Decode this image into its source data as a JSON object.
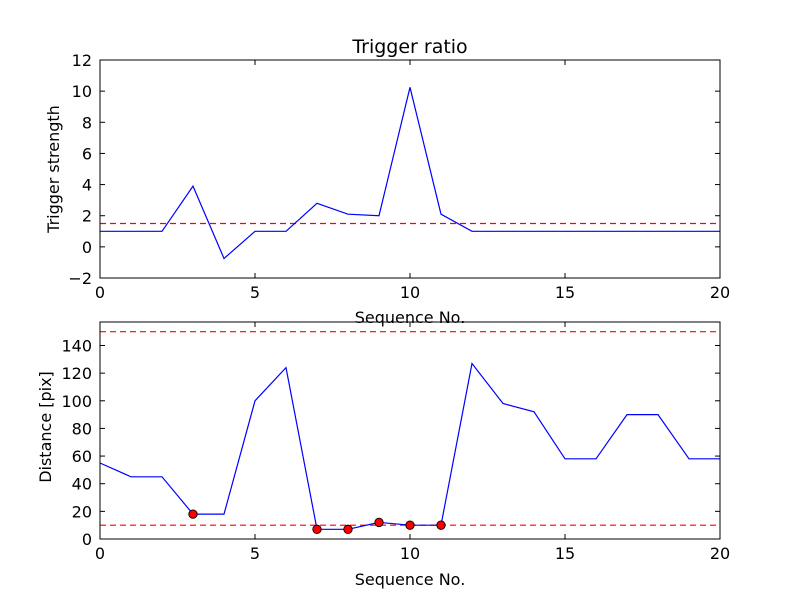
{
  "chart_data": [
    {
      "type": "line",
      "title": "Trigger ratio",
      "xlabel": "Sequence No.",
      "ylabel": "Trigger strength",
      "xlim": [
        0,
        20
      ],
      "ylim": [
        -2,
        12
      ],
      "xticks": [
        0,
        5,
        10,
        15,
        20
      ],
      "yticks": [
        -2,
        0,
        2,
        4,
        6,
        8,
        10,
        12
      ],
      "ytick_labels": [
        "−2",
        "0",
        "2",
        "4",
        "6",
        "8",
        "10",
        "12"
      ],
      "series": [
        {
          "x": [
            0,
            1,
            2,
            3,
            4,
            5,
            6,
            7,
            8,
            9,
            10,
            11,
            12,
            13,
            14,
            15,
            16,
            17,
            18,
            19,
            20
          ],
          "values": [
            1.0,
            1.0,
            1.0,
            3.9,
            -0.75,
            1.0,
            1.0,
            2.8,
            2.1,
            2.0,
            10.25,
            2.1,
            1.0,
            1.0,
            1.0,
            1.0,
            1.0,
            1.0,
            1.0,
            1.0,
            1.0
          ],
          "color": "#0000ff",
          "style": "solid"
        }
      ],
      "hlines": [
        {
          "y": 1.5,
          "color": "#ff0000",
          "style": "dashed"
        }
      ],
      "grid": false
    },
    {
      "type": "line",
      "title": "",
      "xlabel": "Sequence No.",
      "ylabel": "Distance [pix]",
      "xlim": [
        0,
        20
      ],
      "ylim": [
        0,
        157
      ],
      "xticks": [
        0,
        5,
        10,
        15,
        20
      ],
      "yticks": [
        0,
        20,
        40,
        60,
        80,
        100,
        120,
        140
      ],
      "series": [
        {
          "x": [
            0,
            1,
            2,
            3,
            4,
            5,
            6,
            7,
            8,
            9,
            10,
            11,
            12,
            13,
            14,
            15,
            16,
            17,
            18,
            19,
            20
          ],
          "values": [
            55,
            45,
            45,
            18,
            18,
            100,
            124,
            7,
            7,
            12,
            10,
            10,
            127,
            98,
            92,
            58,
            58,
            90,
            90,
            58,
            58
          ],
          "color": "#0000ff",
          "style": "solid"
        }
      ],
      "markers": {
        "x": [
          3,
          7,
          8,
          9,
          10,
          11
        ],
        "values": [
          18,
          7,
          7,
          12,
          10,
          10
        ],
        "color": "#ff0000"
      },
      "hlines": [
        {
          "y": 10,
          "color": "#ff0000",
          "style": "dashed"
        },
        {
          "y": 150,
          "color": "#ff0000",
          "style": "dashed"
        }
      ],
      "grid": false
    }
  ]
}
